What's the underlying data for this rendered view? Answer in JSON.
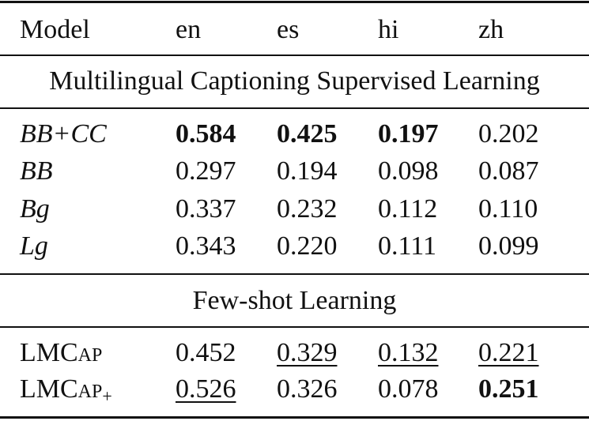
{
  "table": {
    "header": [
      "Model",
      "en",
      "es",
      "hi",
      "zh"
    ],
    "sections": [
      {
        "title": "Multilingual Captioning Supervised Learning",
        "rows": [
          {
            "model": "BB+CC",
            "values": [
              "0.584",
              "0.425",
              "0.197",
              "0.202"
            ]
          },
          {
            "model": "BB",
            "values": [
              "0.297",
              "0.194",
              "0.098",
              "0.087"
            ]
          },
          {
            "model": "Bg",
            "values": [
              "0.337",
              "0.232",
              "0.112",
              "0.110"
            ]
          },
          {
            "model": "Lg",
            "values": [
              "0.343",
              "0.220",
              "0.111",
              "0.099"
            ]
          }
        ]
      },
      {
        "title": "Few-shot Learning",
        "rows": [
          {
            "model": "LMCap",
            "values": [
              "0.452",
              "0.329",
              "0.132",
              "0.221"
            ]
          },
          {
            "model": "LMCap",
            "model_sub": "+",
            "values": [
              "0.526",
              "0.326",
              "0.078",
              "0.251"
            ]
          }
        ]
      }
    ]
  }
}
